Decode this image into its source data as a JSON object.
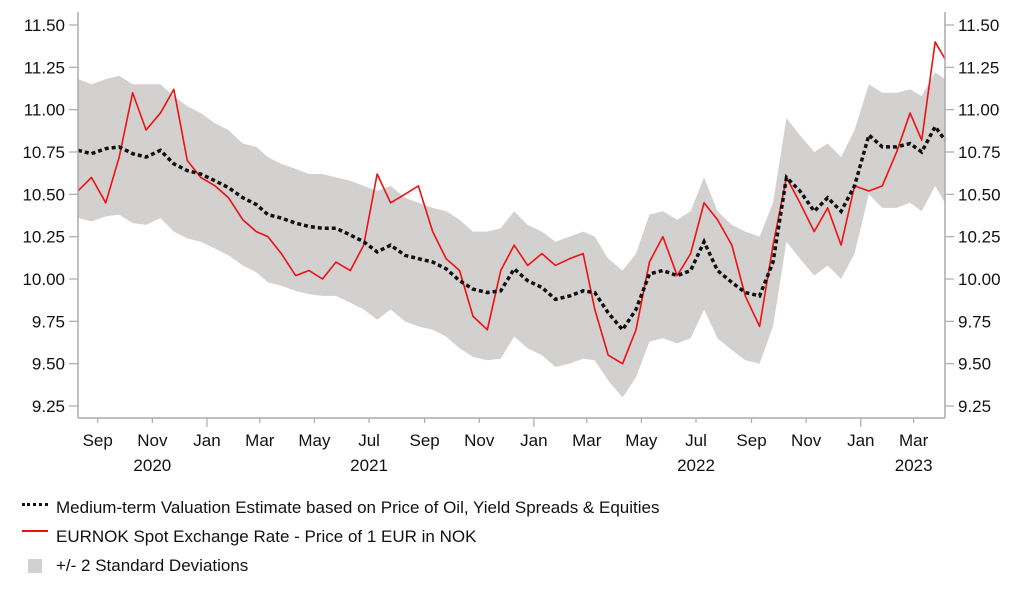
{
  "chart_data": {
    "type": "line",
    "title": "",
    "xlabel": "",
    "ylabel": "",
    "ylim": [
      9.25,
      11.5
    ],
    "xlim": [
      "2020-08-10",
      "2023-04-05"
    ],
    "y_ticks": [
      "11.50",
      "11.25",
      "11.00",
      "10.75",
      "10.50",
      "10.25",
      "10.00",
      "9.75",
      "9.50",
      "9.25"
    ],
    "y_tick_values": [
      11.5,
      11.25,
      11.0,
      10.75,
      10.5,
      10.25,
      10.0,
      9.75,
      9.5,
      9.25
    ],
    "x_ticks": [
      {
        "label": "Sep",
        "date": "2020-09-01",
        "year": "2020"
      },
      {
        "label": "Nov",
        "date": "2020-11-01",
        "year": ""
      },
      {
        "label": "Jan",
        "date": "2021-01-01",
        "year": ""
      },
      {
        "label": "Mar",
        "date": "2021-03-01",
        "year": ""
      },
      {
        "label": "May",
        "date": "2021-05-01",
        "year": ""
      },
      {
        "label": "Jul",
        "date": "2021-07-01",
        "year": "2021"
      },
      {
        "label": "Sep",
        "date": "2021-09-01",
        "year": ""
      },
      {
        "label": "Nov",
        "date": "2021-11-01",
        "year": ""
      },
      {
        "label": "Jan",
        "date": "2022-01-01",
        "year": ""
      },
      {
        "label": "Mar",
        "date": "2022-03-01",
        "year": ""
      },
      {
        "label": "May",
        "date": "2022-05-01",
        "year": ""
      },
      {
        "label": "Jul",
        "date": "2022-07-01",
        "year": "2022"
      },
      {
        "label": "Sep",
        "date": "2022-09-01",
        "year": ""
      },
      {
        "label": "Nov",
        "date": "2022-11-01",
        "year": ""
      },
      {
        "label": "Jan",
        "date": "2023-01-01",
        "year": ""
      },
      {
        "label": "Mar",
        "date": "2023-03-01",
        "year": "2023"
      }
    ],
    "year_labels": [
      {
        "label": "2020",
        "date": "2020-11-01"
      },
      {
        "label": "2021",
        "date": "2021-07-01"
      },
      {
        "label": "2022",
        "date": "2022-07-01"
      },
      {
        "label": "2023",
        "date": "2023-03-01"
      }
    ],
    "grid": false,
    "legend_position": "bottom-left",
    "x": [
      "2020-08-10",
      "2020-08-25",
      "2020-09-10",
      "2020-09-25",
      "2020-10-10",
      "2020-10-25",
      "2020-11-10",
      "2020-11-25",
      "2020-12-10",
      "2020-12-25",
      "2021-01-10",
      "2021-01-25",
      "2021-02-10",
      "2021-02-25",
      "2021-03-10",
      "2021-03-25",
      "2021-04-10",
      "2021-04-25",
      "2021-05-10",
      "2021-05-25",
      "2021-06-10",
      "2021-06-25",
      "2021-07-10",
      "2021-07-25",
      "2021-08-10",
      "2021-08-25",
      "2021-09-10",
      "2021-09-25",
      "2021-10-10",
      "2021-10-25",
      "2021-11-10",
      "2021-11-25",
      "2021-12-10",
      "2021-12-25",
      "2022-01-10",
      "2022-01-25",
      "2022-02-10",
      "2022-02-25",
      "2022-03-10",
      "2022-03-25",
      "2022-04-10",
      "2022-04-25",
      "2022-05-10",
      "2022-05-25",
      "2022-06-10",
      "2022-06-25",
      "2022-07-10",
      "2022-07-25",
      "2022-08-10",
      "2022-08-25",
      "2022-09-10",
      "2022-09-25",
      "2022-10-10",
      "2022-10-25",
      "2022-11-10",
      "2022-11-25",
      "2022-12-10",
      "2022-12-25",
      "2023-01-10",
      "2023-01-25",
      "2023-02-10",
      "2023-02-25",
      "2023-03-10",
      "2023-03-25",
      "2023-04-05"
    ],
    "series": [
      {
        "name": "Medium-term Valuation Estimate based on Price of Oil, Yield Spreads & Equities",
        "style": "dotted",
        "color": "#111111",
        "values": [
          10.76,
          10.74,
          10.77,
          10.78,
          10.74,
          10.72,
          10.76,
          10.68,
          10.64,
          10.62,
          10.58,
          10.54,
          10.48,
          10.44,
          10.38,
          10.36,
          10.33,
          10.31,
          10.3,
          10.3,
          10.26,
          10.22,
          10.16,
          10.2,
          10.14,
          10.12,
          10.1,
          10.06,
          9.99,
          9.94,
          9.92,
          9.93,
          10.06,
          9.99,
          9.95,
          9.88,
          9.9,
          9.93,
          9.92,
          9.8,
          9.7,
          9.82,
          10.03,
          10.05,
          10.02,
          10.05,
          10.22,
          10.05,
          9.98,
          9.92,
          9.9,
          10.1,
          10.6,
          10.52,
          10.4,
          10.48,
          10.4,
          10.55,
          10.85,
          10.78,
          10.78,
          10.8,
          10.75,
          10.9,
          10.82
        ]
      },
      {
        "name": "EURNOK Spot Exchange Rate - Price of 1 EUR in NOK",
        "style": "solid",
        "color": "#ee1111",
        "values": [
          10.52,
          10.6,
          10.45,
          10.72,
          11.1,
          10.88,
          10.98,
          11.12,
          10.7,
          10.6,
          10.55,
          10.48,
          10.35,
          10.28,
          10.25,
          10.15,
          10.02,
          10.05,
          10.0,
          10.1,
          10.05,
          10.2,
          10.62,
          10.45,
          10.5,
          10.55,
          10.28,
          10.12,
          10.05,
          9.78,
          9.7,
          10.05,
          10.2,
          10.08,
          10.15,
          10.08,
          10.12,
          10.15,
          9.82,
          9.55,
          9.5,
          9.7,
          10.1,
          10.25,
          10.02,
          10.15,
          10.45,
          10.35,
          10.2,
          9.9,
          9.72,
          10.2,
          10.6,
          10.45,
          10.28,
          10.42,
          10.2,
          10.55,
          10.52,
          10.55,
          10.75,
          10.98,
          10.82,
          11.4,
          11.3
        ]
      },
      {
        "name": "+/- 2 Standard Deviations",
        "style": "band",
        "color": "#d3d0d0",
        "upper": [
          11.18,
          11.15,
          11.18,
          11.2,
          11.15,
          11.15,
          11.15,
          11.08,
          11.02,
          10.98,
          10.92,
          10.88,
          10.8,
          10.78,
          10.72,
          10.68,
          10.65,
          10.62,
          10.62,
          10.6,
          10.58,
          10.55,
          10.52,
          10.55,
          10.48,
          10.45,
          10.42,
          10.4,
          10.35,
          10.28,
          10.28,
          10.3,
          10.4,
          10.32,
          10.28,
          10.22,
          10.25,
          10.28,
          10.25,
          10.12,
          10.05,
          10.15,
          10.38,
          10.4,
          10.35,
          10.4,
          10.6,
          10.4,
          10.32,
          10.28,
          10.25,
          10.45,
          10.95,
          10.85,
          10.75,
          10.8,
          10.72,
          10.88,
          11.15,
          11.1,
          11.1,
          11.12,
          11.08,
          11.22,
          11.18
        ],
        "lower": [
          10.36,
          10.34,
          10.37,
          10.38,
          10.33,
          10.32,
          10.36,
          10.28,
          10.24,
          10.22,
          10.18,
          10.14,
          10.08,
          10.04,
          9.98,
          9.96,
          9.93,
          9.91,
          9.9,
          9.9,
          9.86,
          9.82,
          9.76,
          9.82,
          9.75,
          9.72,
          9.7,
          9.66,
          9.59,
          9.54,
          9.52,
          9.53,
          9.66,
          9.59,
          9.55,
          9.48,
          9.5,
          9.53,
          9.52,
          9.4,
          9.3,
          9.42,
          9.63,
          9.65,
          9.62,
          9.65,
          9.82,
          9.65,
          9.58,
          9.52,
          9.5,
          9.72,
          10.22,
          10.12,
          10.02,
          10.08,
          10.0,
          10.15,
          10.5,
          10.42,
          10.42,
          10.45,
          10.4,
          10.55,
          10.45
        ]
      }
    ]
  },
  "legend": {
    "items": [
      {
        "label": "Medium-term Valuation Estimate based on Price of Oil, Yield Spreads & Equities"
      },
      {
        "label": "EURNOK Spot Exchange Rate - Price of 1 EUR in NOK"
      },
      {
        "label": "+/- 2 Standard Deviations"
      }
    ]
  }
}
